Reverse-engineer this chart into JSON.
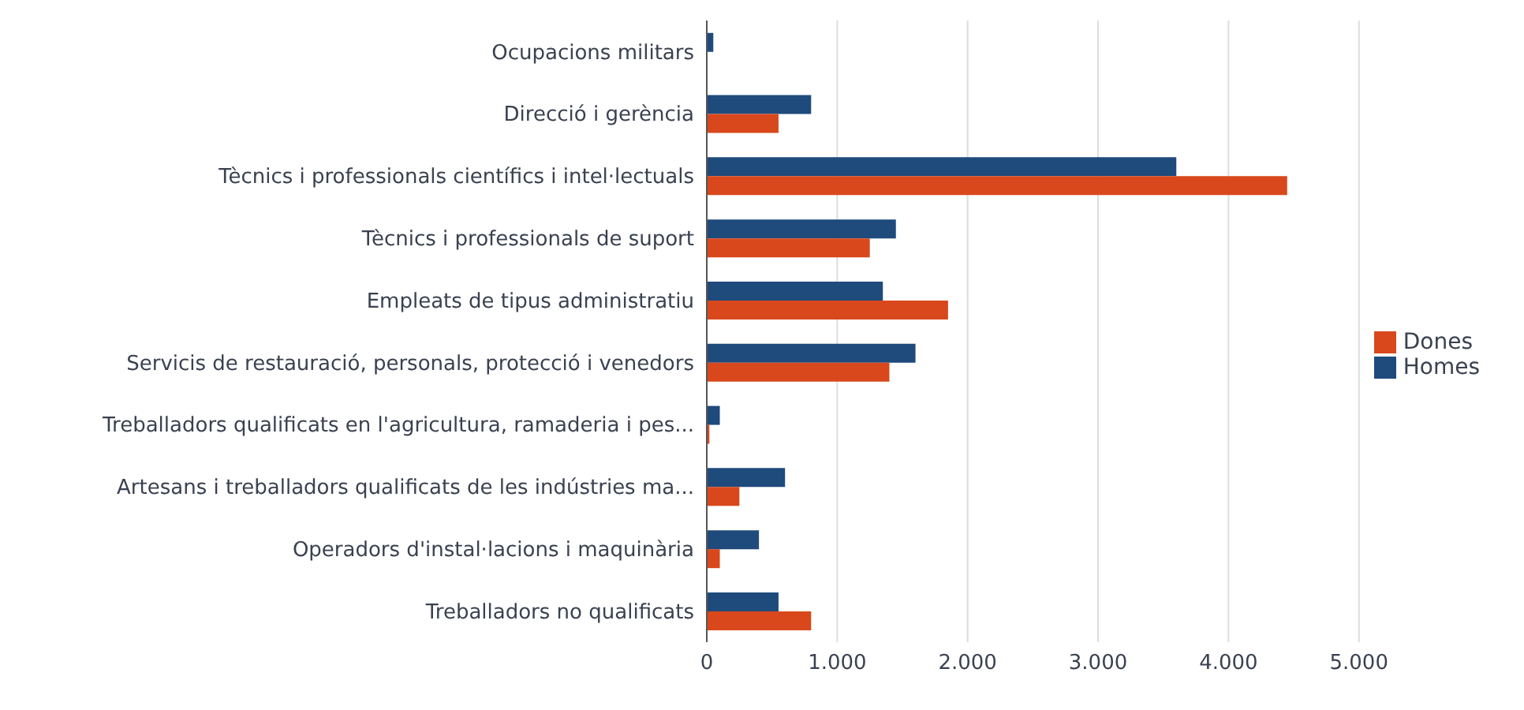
{
  "chart_data": {
    "type": "bar",
    "orientation": "horizontal",
    "categories": [
      "Ocupacions militars",
      "Direcció i gerència",
      "Tècnics i professionals científics i intel·lectuals",
      "Tècnics i professionals de suport",
      "Empleats de tipus administratiu",
      "Servicis de restauració, personals, protecció i venedors",
      "Treballadors qualificats en l'agricultura, ramaderia i pes...",
      "Artesans i treballadors qualificats de les indústries ma...",
      "Operadors d'instal·lacions i maquinària",
      "Treballadors no qualificats"
    ],
    "series": [
      {
        "name": "Homes",
        "color": "#1f4a7c",
        "values": [
          50,
          800,
          3600,
          1450,
          1350,
          1600,
          100,
          600,
          400,
          550
        ]
      },
      {
        "name": "Dones",
        "color": "#d9481c",
        "values": [
          0,
          550,
          4450,
          1250,
          1850,
          1400,
          20,
          250,
          100,
          800
        ]
      }
    ],
    "xlim": [
      0,
      5000
    ],
    "xticks": [
      0,
      {
        "value": 1000,
        "label": "1.000"
      },
      {
        "value": 2000,
        "label": "2.000"
      },
      {
        "value": 3000,
        "label": "3.000"
      },
      {
        "value": 4000,
        "label": "4.000"
      },
      {
        "value": 5000,
        "label": "5.000"
      }
    ],
    "grid": "x",
    "legend": "right"
  }
}
